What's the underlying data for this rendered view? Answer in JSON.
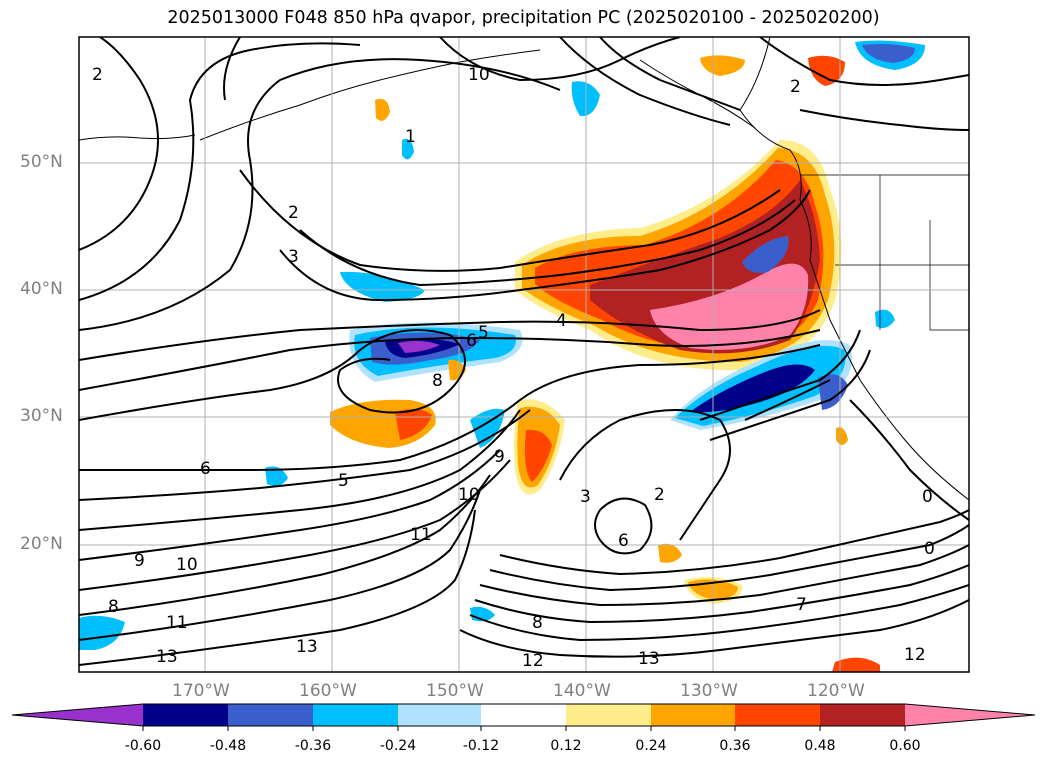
{
  "title": "2025013000 F048 850 hPa qvapor, precipitation PC (2025020100 - 2025020200)",
  "lat_labels": [
    "50°N",
    "40°N",
    "30°N",
    "20°N"
  ],
  "lon_labels": [
    "170°W",
    "160°W",
    "150°W",
    "140°W",
    "130°W",
    "120°W"
  ],
  "colorbar": {
    "ticks": [
      "-0.60",
      "-0.48",
      "-0.36",
      "-0.24",
      "-0.12",
      "0.12",
      "0.24",
      "0.36",
      "0.48",
      "0.60"
    ],
    "colors": [
      "#9932CC",
      "#00008B",
      "#3A5FCD",
      "#00BFFF",
      "#B0E2FF",
      "#FFFFFF",
      "#FFEC8B",
      "#FFA500",
      "#FF4500",
      "#B22222",
      "#FF82AB"
    ]
  },
  "contour_labels": [
    "2",
    "10",
    "1",
    "2",
    "3",
    "4",
    "5",
    "6",
    "8",
    "5",
    "6",
    "9",
    "10",
    "11",
    "3",
    "2",
    "6",
    "8",
    "7",
    "12",
    "13",
    "13",
    "11",
    "9",
    "10",
    "8",
    "12",
    "13",
    "2",
    "0",
    "0"
  ],
  "colors": {
    "axis_text": "#808080",
    "contour": "#000000",
    "gridline": "#b0b0b0"
  }
}
